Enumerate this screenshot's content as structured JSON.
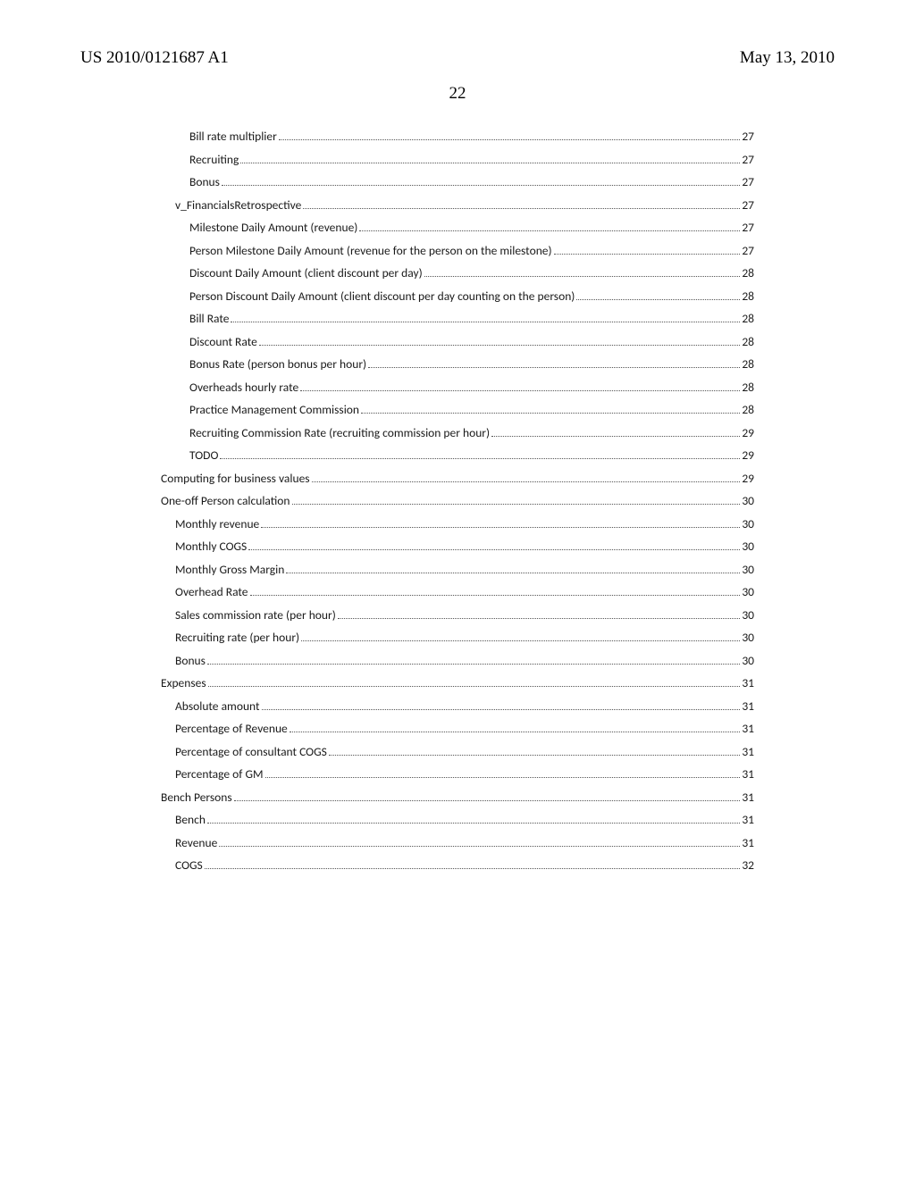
{
  "header": {
    "left": "US 2010/0121687 A1",
    "right": "May 13, 2010"
  },
  "page_number": "22",
  "toc": [
    {
      "label": "Bill rate multiplier",
      "page": "27",
      "indent": 2
    },
    {
      "label": "Recruiting",
      "page": "27",
      "indent": 2
    },
    {
      "label": "Bonus",
      "page": "27",
      "indent": 2
    },
    {
      "label": "v_FinancialsRetrospective",
      "page": "27",
      "indent": 1
    },
    {
      "label": "Milestone Daily Amount (revenue)",
      "page": "27",
      "indent": 2
    },
    {
      "label": "Person Milestone Daily Amount (revenue for the person on the milestone)",
      "page": "27",
      "indent": 2
    },
    {
      "label": "Discount Daily Amount (client discount per day)",
      "page": "28",
      "indent": 2
    },
    {
      "label": "Person Discount Daily Amount (client discount per day counting on the person)",
      "page": "28",
      "indent": 2
    },
    {
      "label": "Bill Rate",
      "page": "28",
      "indent": 2
    },
    {
      "label": "Discount Rate",
      "page": "28",
      "indent": 2
    },
    {
      "label": "Bonus Rate (person bonus per hour)",
      "page": "28",
      "indent": 2
    },
    {
      "label": "Overheads hourly rate",
      "page": "28",
      "indent": 2
    },
    {
      "label": "Practice Management Commission",
      "page": "28",
      "indent": 2
    },
    {
      "label": "Recruiting Commission Rate (recruiting commission per hour)",
      "page": "29",
      "indent": 2
    },
    {
      "label": "TODO",
      "page": "29",
      "indent": 2
    },
    {
      "label": "Computing for business values",
      "page": "29",
      "indent": 0
    },
    {
      "label": "One-off Person calculation",
      "page": "30",
      "indent": 0
    },
    {
      "label": "Monthly revenue",
      "page": "30",
      "indent": 1
    },
    {
      "label": "Monthly COGS",
      "page": "30",
      "indent": 1
    },
    {
      "label": "Monthly Gross Margin",
      "page": "30",
      "indent": 1
    },
    {
      "label": "Overhead Rate",
      "page": "30",
      "indent": 1
    },
    {
      "label": "Sales commission rate (per hour)",
      "page": "30",
      "indent": 1
    },
    {
      "label": "Recruiting rate (per hour)",
      "page": "30",
      "indent": 1
    },
    {
      "label": "Bonus",
      "page": "30",
      "indent": 1
    },
    {
      "label": "Expenses",
      "page": "31",
      "indent": 0
    },
    {
      "label": "Absolute amount",
      "page": "31",
      "indent": 1
    },
    {
      "label": "Percentage of Revenue",
      "page": "31",
      "indent": 1
    },
    {
      "label": "Percentage of consultant COGS",
      "page": "31",
      "indent": 1
    },
    {
      "label": "Percentage of GM",
      "page": "31",
      "indent": 1
    },
    {
      "label": "Bench Persons",
      "page": "31",
      "indent": 0
    },
    {
      "label": "Bench",
      "page": "31",
      "indent": 1
    },
    {
      "label": "Revenue",
      "page": "31",
      "indent": 1
    },
    {
      "label": "COGS",
      "page": "32",
      "indent": 1
    }
  ]
}
